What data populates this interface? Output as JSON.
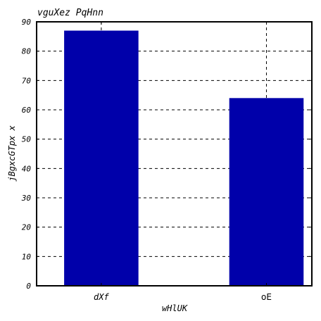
{
  "chart_data": {
    "type": "bar",
    "title": "vguXez PqHnn",
    "xlabel": "wHlUK",
    "ylabel": "jBgxcGTpx x",
    "categories": [
      "dXf",
      "oE"
    ],
    "values": [
      87,
      64
    ],
    "ylim": [
      0,
      90
    ],
    "yticks": [
      "0",
      "10",
      "20",
      "30",
      "40",
      "50",
      "60",
      "70",
      "80",
      "90"
    ],
    "grid": true,
    "bar_color": "#0000aa"
  }
}
